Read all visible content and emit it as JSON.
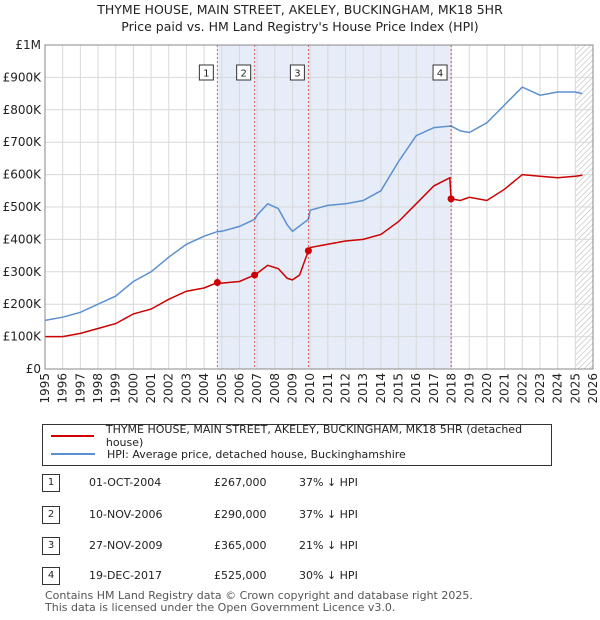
{
  "title": "THYME HOUSE, MAIN STREET, AKELEY, BUCKINGHAM, MK18 5HR",
  "subtitle": "Price paid vs. HM Land Registry's House Price Index (HPI)",
  "legend": {
    "property": "THYME HOUSE, MAIN STREET, AKELEY, BUCKINGHAM, MK18 5HR (detached house)",
    "hpi": "HPI: Average price, detached house, Buckinghamshire"
  },
  "transactions": [
    {
      "num": "1",
      "date": "01-OCT-2004",
      "price": "£267,000",
      "delta": "37% ↓ HPI"
    },
    {
      "num": "2",
      "date": "10-NOV-2006",
      "price": "£290,000",
      "delta": "37% ↓ HPI"
    },
    {
      "num": "3",
      "date": "27-NOV-2009",
      "price": "£365,000",
      "delta": "21% ↓ HPI"
    },
    {
      "num": "4",
      "date": "19-DEC-2017",
      "price": "£525,000",
      "delta": "30% ↓ HPI"
    }
  ],
  "footer": {
    "line1": "Contains HM Land Registry data © Crown copyright and database right 2025.",
    "line2": "This data is licensed under the Open Government Licence v3.0."
  },
  "colors": {
    "property": "#cc0000",
    "hpi": "#5b8fd0",
    "band": "#dce6f5"
  },
  "chart_data": {
    "type": "line",
    "xlim": [
      1995,
      2026
    ],
    "ylim": [
      0,
      1000000
    ],
    "yticks": [
      0,
      100000,
      200000,
      300000,
      400000,
      500000,
      600000,
      700000,
      800000,
      900000,
      1000000
    ],
    "ytick_labels": [
      "£0",
      "£100K",
      "£200K",
      "£300K",
      "£400K",
      "£500K",
      "£600K",
      "£700K",
      "£800K",
      "£900K",
      "£1M"
    ],
    "xticks": [
      "1995",
      "1996",
      "1997",
      "1998",
      "1999",
      "2000",
      "2001",
      "2002",
      "2003",
      "2004",
      "2005",
      "2006",
      "2007",
      "2008",
      "2009",
      "2010",
      "2011",
      "2012",
      "2013",
      "2014",
      "2015",
      "2016",
      "2017",
      "2018",
      "2019",
      "2020",
      "2021",
      "2022",
      "2023",
      "2024",
      "2025",
      "2026"
    ],
    "grid": true,
    "series": [
      {
        "name": "THYME HOUSE, MAIN STREET, AKELEY, BUCKINGHAM, MK18 5HR (detached house)",
        "points": [
          [
            1995,
            100000
          ],
          [
            1996,
            100000
          ],
          [
            1997,
            110000
          ],
          [
            1998,
            125000
          ],
          [
            1999,
            140000
          ],
          [
            2000,
            170000
          ],
          [
            2001,
            185000
          ],
          [
            2002,
            215000
          ],
          [
            2003,
            240000
          ],
          [
            2004,
            250000
          ],
          [
            2004.75,
            267000
          ],
          [
            2005,
            265000
          ],
          [
            2006,
            270000
          ],
          [
            2006.86,
            290000
          ],
          [
            2007,
            295000
          ],
          [
            2007.6,
            320000
          ],
          [
            2008.2,
            310000
          ],
          [
            2008.7,
            280000
          ],
          [
            2009,
            275000
          ],
          [
            2009.4,
            290000
          ],
          [
            2009.9,
            365000
          ],
          [
            2010,
            375000
          ],
          [
            2011,
            385000
          ],
          [
            2012,
            395000
          ],
          [
            2013,
            400000
          ],
          [
            2014,
            415000
          ],
          [
            2015,
            455000
          ],
          [
            2016,
            510000
          ],
          [
            2017,
            565000
          ],
          [
            2017.9,
            590000
          ],
          [
            2017.97,
            525000
          ],
          [
            2018.5,
            520000
          ],
          [
            2019,
            530000
          ],
          [
            2020,
            520000
          ],
          [
            2021,
            555000
          ],
          [
            2022,
            600000
          ],
          [
            2023,
            595000
          ],
          [
            2024,
            590000
          ],
          [
            2025,
            595000
          ],
          [
            2025.4,
            598000
          ]
        ]
      },
      {
        "name": "HPI: Average price, detached house, Buckinghamshire",
        "points": [
          [
            1995,
            150000
          ],
          [
            1996,
            160000
          ],
          [
            1997,
            175000
          ],
          [
            1998,
            200000
          ],
          [
            1999,
            225000
          ],
          [
            2000,
            270000
          ],
          [
            2001,
            300000
          ],
          [
            2002,
            345000
          ],
          [
            2003,
            385000
          ],
          [
            2004,
            410000
          ],
          [
            2004.75,
            424000
          ],
          [
            2005,
            425000
          ],
          [
            2006,
            440000
          ],
          [
            2006.86,
            462000
          ],
          [
            2007,
            475000
          ],
          [
            2007.6,
            510000
          ],
          [
            2008.2,
            495000
          ],
          [
            2008.7,
            445000
          ],
          [
            2009,
            425000
          ],
          [
            2009.9,
            462000
          ],
          [
            2010,
            490000
          ],
          [
            2011,
            505000
          ],
          [
            2012,
            510000
          ],
          [
            2013,
            520000
          ],
          [
            2014,
            550000
          ],
          [
            2015,
            640000
          ],
          [
            2016,
            720000
          ],
          [
            2017,
            745000
          ],
          [
            2017.97,
            750000
          ],
          [
            2018.5,
            735000
          ],
          [
            2019,
            730000
          ],
          [
            2020,
            760000
          ],
          [
            2021,
            815000
          ],
          [
            2022,
            870000
          ],
          [
            2023,
            845000
          ],
          [
            2024,
            855000
          ],
          [
            2025,
            855000
          ],
          [
            2025.4,
            850000
          ]
        ]
      }
    ],
    "sales": [
      {
        "label": "1",
        "x": 2004.75,
        "y": 267000
      },
      {
        "label": "2",
        "x": 2006.86,
        "y": 290000
      },
      {
        "label": "3",
        "x": 2009.9,
        "y": 365000
      },
      {
        "label": "4",
        "x": 2017.97,
        "y": 525000
      }
    ],
    "hatched_region": [
      2025,
      2026
    ]
  }
}
